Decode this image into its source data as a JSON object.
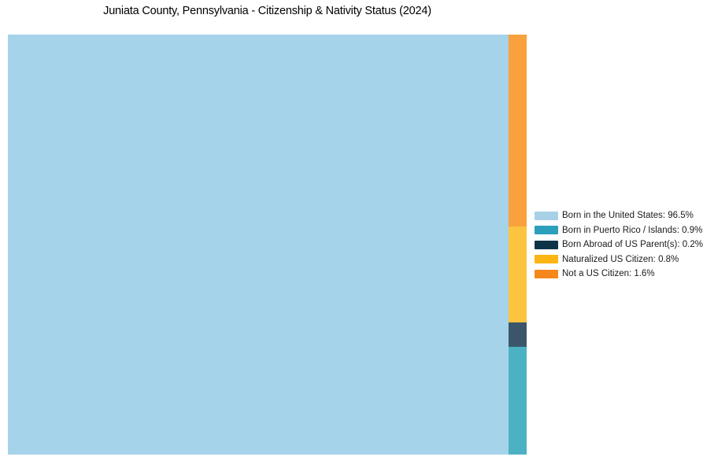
{
  "title": "Juniata County, Pennsylvania - Citizenship & Nativity Status (2024)",
  "chart_data": {
    "type": "treemap",
    "title": "Juniata County, Pennsylvania - Citizenship & Nativity Status (2024)",
    "categories": [
      "Born in the United States",
      "Born in Puerto Rico / Islands",
      "Born Abroad of US Parent(s)",
      "Naturalized US Citizen",
      "Not a US Citizen"
    ],
    "values_pct": [
      96.5,
      0.9,
      0.2,
      0.8,
      1.6
    ],
    "series": [
      {
        "name": "Born in the United States",
        "pct": 96.5,
        "tile_color": "#a5d3e9",
        "legend_color": "#a8d1e8",
        "legend_label": "Born in the United States: 96.5%"
      },
      {
        "name": "Born in Puerto Rico / Islands",
        "pct": 0.9,
        "tile_color": "#4bb1c3",
        "legend_color": "#2b9fbc",
        "legend_label": "Born in Puerto Rico / Islands: 0.9%"
      },
      {
        "name": "Born Abroad of US Parent(s)",
        "pct": 0.2,
        "tile_color": "#3b566a",
        "legend_color": "#0d3349",
        "legend_label": "Born Abroad of US Parent(s): 0.2%"
      },
      {
        "name": "Naturalized US Citizen",
        "pct": 0.8,
        "tile_color": "#fdc440",
        "legend_color": "#fdb513",
        "legend_label": "Naturalized US Citizen: 0.8%"
      },
      {
        "name": "Not a US Citizen",
        "pct": 1.6,
        "tile_color": "#f9a13c",
        "legend_color": "#f6871d",
        "legend_label": "Not a US Citizen: 1.6%"
      }
    ],
    "layout": {
      "legend_position": "right-middle",
      "grid": false,
      "main_tile": "Born in the United States",
      "right_column_top_to_bottom": [
        "Not a US Citizen",
        "Naturalized US Citizen",
        "Born Abroad of US Parent(s)",
        "Born in Puerto Rico / Islands"
      ]
    }
  }
}
